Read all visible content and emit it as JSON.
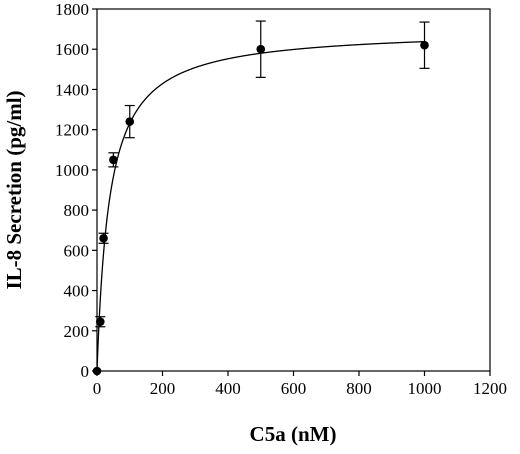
{
  "chart_data": {
    "type": "scatter",
    "title": "",
    "xlabel": "C5a (nM)",
    "ylabel": "IL-8 Secretion (pg/ml)",
    "xlim": [
      0,
      1200
    ],
    "ylim": [
      0,
      1800
    ],
    "xticks": [
      0,
      200,
      400,
      600,
      800,
      1000,
      1200
    ],
    "yticks": [
      0,
      200,
      400,
      600,
      800,
      1000,
      1200,
      1400,
      1600,
      1800
    ],
    "grid": false,
    "legend": "none",
    "series": [
      {
        "x": [
          0,
          10,
          20,
          50,
          100,
          500,
          1000
        ],
        "y": [
          0,
          245,
          660,
          1050,
          1240,
          1600,
          1620
        ],
        "error": [
          0,
          25,
          25,
          35,
          80,
          140,
          115
        ]
      }
    ],
    "fit_curve": {
      "model": "hyperbolic",
      "vmax": 1700,
      "k": 38
    },
    "colors": {
      "marker": "#000000",
      "line": "#000000"
    }
  }
}
